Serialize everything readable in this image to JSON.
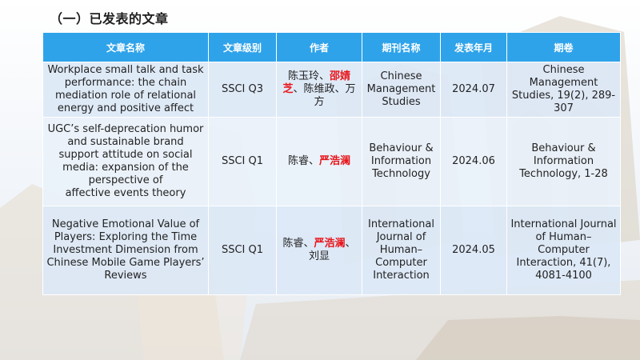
{
  "page": {
    "heading": "（一）已发表的文章"
  },
  "table": {
    "headers": [
      "文章名称",
      "文章级别",
      "作者",
      "期刊名称",
      "发表年月",
      "期卷"
    ],
    "rows": [
      {
        "title": "Workplace small talk and task performance: the chain mediation role of relational energy and positive affect",
        "level": "SSCI Q3",
        "authors": {
          "before": "陈玉玲、",
          "highlight": "邵婧芝",
          "after": "、陈维政、万方"
        },
        "journal": "Chinese Management Studies",
        "date": "2024.07",
        "volume": "Chinese Management Studies, 19(2), 289-307"
      },
      {
        "title": "UGC’s self-deprecation humor\nand sustainable brand support attitude on social media: expansion of the perspective of\naffective events theory",
        "level": "SSCI Q1",
        "authors": {
          "before": "陈睿、",
          "highlight": "严浩澜",
          "after": ""
        },
        "journal": "Behaviour & Information Technology",
        "date": "2024.06",
        "volume": "Behaviour & Information Technology, 1-28"
      },
      {
        "title": "Negative Emotional Value of Players: Exploring the Time Investment Dimension from Chinese Mobile Game Players’ Reviews",
        "level": "SSCI Q1",
        "authors": {
          "before": "陈睿、",
          "highlight": "严浩澜",
          "after": "、刘显"
        },
        "journal": "International Journal of Human–Computer Interaction",
        "date": "2024.05",
        "volume": "International Journal of Human–Computer Interaction, 41(7), 4081-4100"
      }
    ]
  },
  "colors": {
    "header_bg": "#2fa3ea",
    "row_bg": "#dde8f6",
    "highlight": "#e8161b"
  }
}
